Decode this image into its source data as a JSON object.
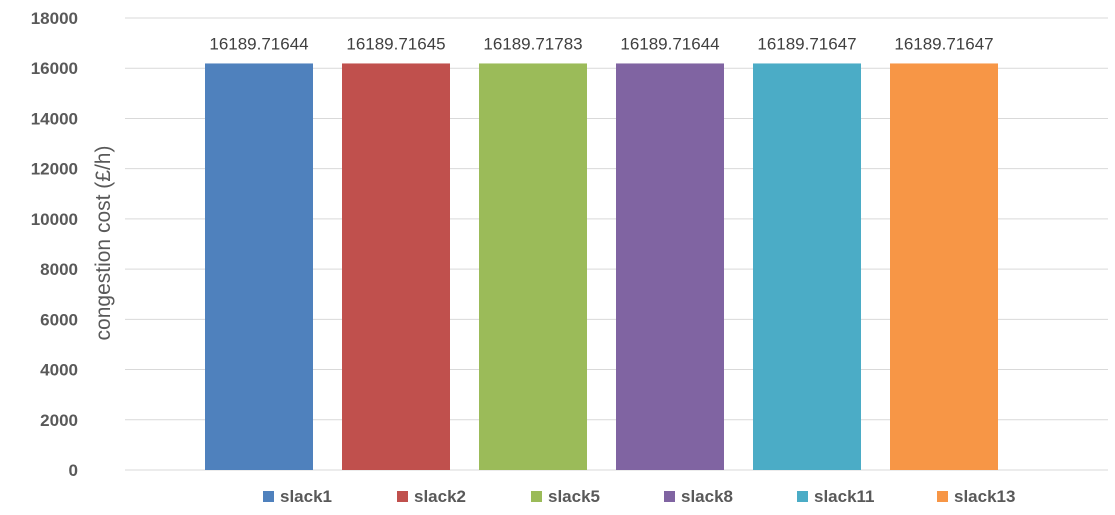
{
  "chart_data": {
    "type": "bar",
    "title": "",
    "xlabel": "",
    "ylabel": "congestion cost (£/h)",
    "ylim": [
      0,
      18000
    ],
    "y_ticks": [
      "0",
      "2000",
      "4000",
      "6000",
      "8000",
      "10000",
      "12000",
      "14000",
      "16000",
      "18000"
    ],
    "grid": true,
    "legend_position": "bottom",
    "series": [
      {
        "name": "slack1",
        "value": 16189.71644,
        "label": "16189.71644",
        "color": "#4F81BD"
      },
      {
        "name": "slack2",
        "value": 16189.71645,
        "label": "16189.71645",
        "color": "#C0504D"
      },
      {
        "name": "slack5",
        "value": 16189.71783,
        "label": "16189.71783",
        "color": "#9BBB59"
      },
      {
        "name": "slack8",
        "value": 16189.71644,
        "label": "16189.71644",
        "color": "#8064A2"
      },
      {
        "name": "slack11",
        "value": 16189.71647,
        "label": "16189.71647",
        "color": "#4BACC6"
      },
      {
        "name": "slack13",
        "value": 16189.71647,
        "label": "16189.71647",
        "color": "#F79646"
      }
    ]
  }
}
